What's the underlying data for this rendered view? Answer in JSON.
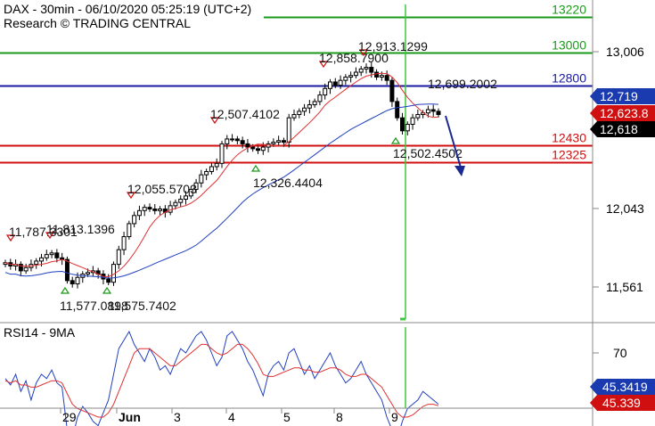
{
  "header": {
    "title": "DAX - 30min - 06/10/2020 05:25:19 (UTC+2)",
    "subtitle": "Research © TRADING CENTRAL"
  },
  "colors": {
    "green": "#1a9a1a",
    "red": "#d01010",
    "blue": "#1a1aa0",
    "price": "#000000",
    "ma_red": "#e03030",
    "ma_blue": "#2040c0",
    "forecast": "#1a2a90"
  },
  "chart_data": [
    {
      "type": "candlestick",
      "ylim": [
        11300,
        13300
      ],
      "x_labels": [
        "29",
        "Jun",
        "3",
        "4",
        "5",
        "8",
        "9"
      ],
      "y_ticks": [
        "13,006",
        "12,043",
        "11,561"
      ],
      "grid": false,
      "levels": [
        {
          "value": 13220,
          "label": "13220",
          "color": "green"
        },
        {
          "value": 13000,
          "label": "13000",
          "color": "green"
        },
        {
          "value": 12800,
          "label": "12800",
          "color": "blue"
        },
        {
          "value": 12430,
          "label": "12430",
          "color": "red"
        },
        {
          "value": 12325,
          "label": "12325",
          "color": "red"
        }
      ],
      "price_tags": [
        {
          "value": 12719,
          "label": "12,719",
          "bg": "#1a3ab0"
        },
        {
          "value": 12623.8,
          "label": "12,623.8",
          "bg": "#d01010"
        },
        {
          "value": 12618,
          "label": "12,618",
          "bg": "#000000"
        }
      ],
      "annotations": [
        {
          "label": "11,787.3301",
          "kind": "high"
        },
        {
          "label": "11,813.1396",
          "kind": "high"
        },
        {
          "label": "12,055.5703",
          "kind": "high"
        },
        {
          "label": "12,507.4102",
          "kind": "high"
        },
        {
          "label": "12,858.7900",
          "kind": "high"
        },
        {
          "label": "12,913.1299",
          "kind": "high"
        },
        {
          "label": "12,699.2002",
          "kind": "high"
        },
        {
          "label": "11,577.0898",
          "kind": "low"
        },
        {
          "label": "11,575.7402",
          "kind": "low"
        },
        {
          "label": "12,326.4404",
          "kind": "low"
        },
        {
          "label": "12,502.4502",
          "kind": "low"
        }
      ],
      "close": [
        11710,
        11690,
        11700,
        11660,
        11680,
        11700,
        11720,
        11740,
        11760,
        11770,
        11740,
        11730,
        11600,
        11580,
        11620,
        11640,
        11650,
        11660,
        11640,
        11610,
        11590,
        11700,
        11790,
        11870,
        11950,
        12000,
        12030,
        12050,
        12040,
        12030,
        12040,
        12020,
        12060,
        12080,
        12100,
        12120,
        12160,
        12200,
        12250,
        12270,
        12300,
        12320,
        12440,
        12470,
        12470,
        12460,
        12440,
        12420,
        12410,
        12400,
        12420,
        12440,
        12450,
        12460,
        12450,
        12600,
        12620,
        12640,
        12660,
        12680,
        12700,
        12740,
        12780,
        12820,
        12800,
        12830,
        12850,
        12860,
        12880,
        12900,
        12910,
        12880,
        12850,
        12860,
        12830,
        12700,
        12600,
        12520,
        12560,
        12600,
        12620,
        12630,
        12650,
        12640,
        12620
      ]
    },
    {
      "type": "line",
      "title": "RSI14 - 9MA",
      "ylim": [
        25,
        95
      ],
      "y_ticks": [
        "70"
      ],
      "price_tags": [
        {
          "value": 45.3419,
          "label": "45.3419",
          "bg": "#1a3ab0"
        },
        {
          "value": 45.339,
          "label": "45.339",
          "bg": "#d01010"
        }
      ],
      "series": [
        {
          "values": [
            58,
            55,
            60,
            52,
            57,
            48,
            56,
            60,
            58,
            62,
            56,
            54,
            34,
            30,
            40,
            45,
            42,
            38,
            36,
            42,
            48,
            60,
            72,
            76,
            80,
            74,
            70,
            66,
            72,
            68,
            62,
            64,
            60,
            66,
            72,
            70,
            74,
            78,
            80,
            76,
            70,
            64,
            68,
            78,
            80,
            76,
            72,
            66,
            62,
            56,
            50,
            60,
            64,
            66,
            62,
            70,
            72,
            66,
            60,
            64,
            58,
            62,
            66,
            70,
            64,
            60,
            56,
            58,
            62,
            66,
            60,
            56,
            52,
            48,
            40,
            34,
            30,
            38,
            44,
            46,
            48,
            52,
            50,
            48,
            46
          ]
        },
        {
          "values": [
            57,
            56,
            57,
            55,
            55,
            54,
            54,
            55,
            56,
            57,
            57,
            56,
            51,
            46,
            44,
            43,
            42,
            41,
            40,
            40,
            42,
            46,
            52,
            58,
            64,
            70,
            72,
            72,
            72,
            70,
            68,
            66,
            64,
            64,
            66,
            68,
            70,
            72,
            74,
            74,
            72,
            70,
            69,
            70,
            72,
            74,
            74,
            72,
            69,
            65,
            60,
            59,
            59,
            60,
            61,
            62,
            63,
            63,
            62,
            62,
            61,
            61,
            62,
            63,
            63,
            62,
            60,
            59,
            59,
            60,
            60,
            58,
            56,
            54,
            50,
            46,
            42,
            40,
            40,
            41,
            43,
            45,
            46,
            46,
            45.3
          ]
        }
      ]
    }
  ]
}
